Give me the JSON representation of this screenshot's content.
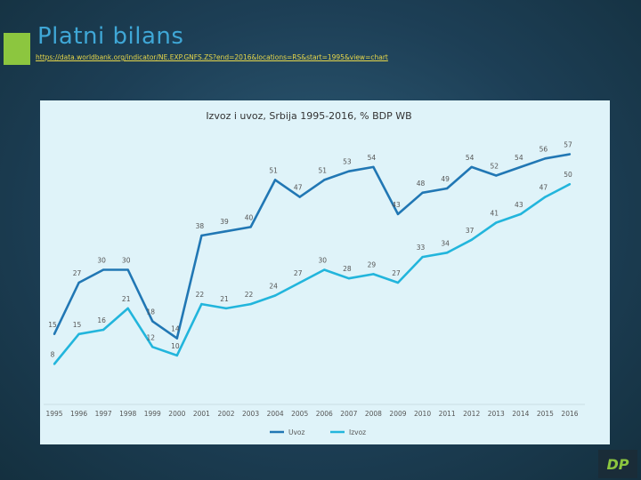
{
  "slide": {
    "title": "Platni bilans",
    "source_url": "https://data.worldbank.org/indicator/NE.EXP.GNFS.ZS?end=2016&locations=RS&start=1995&view=chart",
    "logo_text": "DP"
  },
  "colors": {
    "accent": "#8cc63f",
    "title": "#3fa7d6",
    "uvoz": "#2177b4",
    "izvoz": "#22b5dc"
  },
  "chart_data": {
    "type": "line",
    "title": "Izvoz i uvoz, Srbija 1995-2016, % BDP WB",
    "xlabel": "",
    "ylabel": "",
    "categories": [
      "1995",
      "1996",
      "1997",
      "1998",
      "1999",
      "2000",
      "2001",
      "2002",
      "2003",
      "2004",
      "2005",
      "2006",
      "2007",
      "2008",
      "2009",
      "2010",
      "2011",
      "2012",
      "2013",
      "2014",
      "2015",
      "2016"
    ],
    "ylim": [
      5,
      60
    ],
    "series": [
      {
        "name": "Uvoz",
        "color": "#2177b4",
        "values": [
          15,
          27,
          30,
          30,
          18,
          14,
          38,
          39,
          40,
          51,
          47,
          51,
          53,
          54,
          43,
          48,
          49,
          54,
          52,
          54,
          56,
          57
        ],
        "labels": [
          "15",
          "27",
          "30",
          "30",
          "18",
          "14",
          "38",
          "39",
          "40",
          "51",
          "47",
          "51",
          "53",
          "54",
          "43",
          "48",
          "49",
          "54",
          "52",
          "54",
          "56",
          "57"
        ]
      },
      {
        "name": "Izvoz",
        "color": "#22b5dc",
        "values": [
          8,
          15,
          16,
          21,
          12,
          10,
          22,
          21,
          22,
          24,
          27,
          30,
          28,
          29,
          27,
          33,
          34,
          37,
          41,
          43,
          47,
          50
        ],
        "labels": [
          "8",
          "15",
          "16",
          "21",
          "12",
          "10",
          "22",
          "21",
          "22",
          "24",
          "27",
          "30",
          "28",
          "29",
          "27",
          "33",
          "34",
          "37",
          "41",
          "43",
          "47",
          "50"
        ]
      }
    ],
    "legend": "bottom"
  }
}
